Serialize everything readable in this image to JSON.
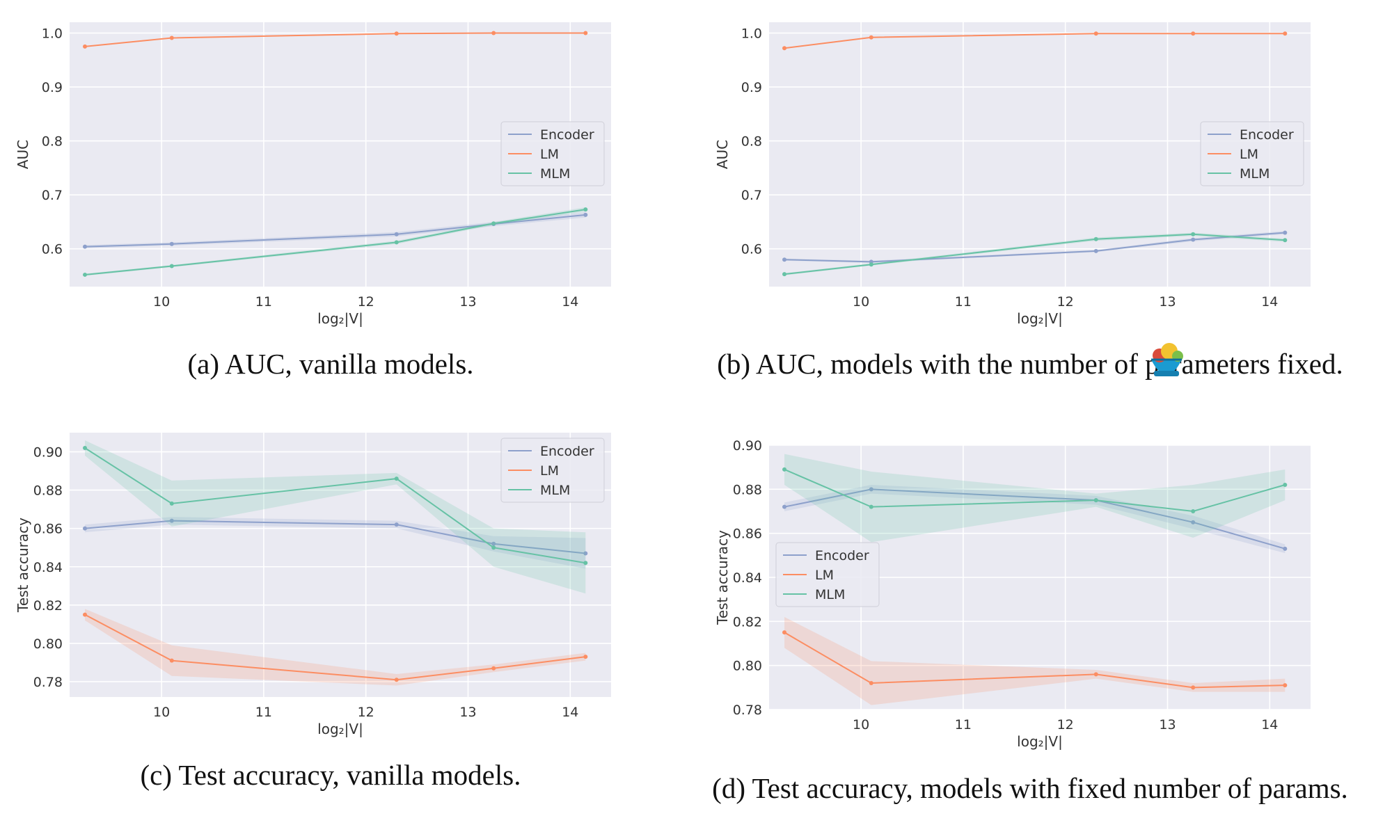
{
  "colors": {
    "Encoder": "#8da0cb",
    "LM": "#fc8d62",
    "MLM": "#66c2a5",
    "panel_background": "#eaeaf2",
    "grid": "#ffffff"
  },
  "logo_icon": "salad-bowl-icon",
  "chart_data": [
    {
      "type": "line",
      "caption": "(a) AUC, vanilla models.",
      "xlabel": "log₂|V|",
      "ylabel": "AUC",
      "xlim": [
        9.1,
        14.4
      ],
      "ylim": [
        0.53,
        1.02
      ],
      "xticks": [
        10,
        11,
        12,
        13,
        14
      ],
      "xtick_labels": [
        "10",
        "11",
        "12",
        "13",
        "14"
      ],
      "yticks": [
        0.6,
        0.7,
        0.8,
        0.9,
        1.0
      ],
      "ytick_labels": [
        "0.6",
        "0.7",
        "0.8",
        "0.9",
        "1.0"
      ],
      "grid": true,
      "legend": "center-right",
      "x": [
        9.25,
        10.1,
        12.3,
        13.25,
        14.15
      ],
      "series": [
        {
          "name": "Encoder",
          "values": [
            0.604,
            0.609,
            0.627,
            0.646,
            0.663
          ],
          "band": [
            0.003,
            0.003,
            0.004,
            0.004,
            0.005
          ]
        },
        {
          "name": "LM",
          "values": [
            0.975,
            0.991,
            0.999,
            1.0,
            1.0
          ],
          "band": [
            0.001,
            0.001,
            0.001,
            0.001,
            0.001
          ]
        },
        {
          "name": "MLM",
          "values": [
            0.552,
            0.568,
            0.612,
            0.647,
            0.673
          ],
          "band": [
            0.002,
            0.002,
            0.003,
            0.003,
            0.004
          ]
        }
      ]
    },
    {
      "type": "line",
      "caption": "(b) AUC, models with the number of parameters fixed.",
      "xlabel": "log₂|V|",
      "ylabel": "AUC",
      "xlim": [
        9.1,
        14.4
      ],
      "ylim": [
        0.53,
        1.02
      ],
      "xticks": [
        10,
        11,
        12,
        13,
        14
      ],
      "xtick_labels": [
        "10",
        "11",
        "12",
        "13",
        "14"
      ],
      "yticks": [
        0.6,
        0.7,
        0.8,
        0.9,
        1.0
      ],
      "ytick_labels": [
        "0.6",
        "0.7",
        "0.8",
        "0.9",
        "1.0"
      ],
      "grid": true,
      "legend": "center-right",
      "x": [
        9.25,
        10.1,
        12.3,
        13.25,
        14.15
      ],
      "series": [
        {
          "name": "Encoder",
          "values": [
            0.58,
            0.576,
            0.596,
            0.617,
            0.63
          ],
          "band": [
            0.002,
            0.002,
            0.002,
            0.003,
            0.003
          ]
        },
        {
          "name": "LM",
          "values": [
            0.972,
            0.992,
            0.999,
            0.999,
            0.999
          ],
          "band": [
            0.001,
            0.001,
            0.001,
            0.001,
            0.001
          ]
        },
        {
          "name": "MLM",
          "values": [
            0.553,
            0.571,
            0.618,
            0.627,
            0.616
          ],
          "band": [
            0.002,
            0.002,
            0.003,
            0.003,
            0.003
          ]
        }
      ]
    },
    {
      "type": "line",
      "caption": "(c) Test accuracy, vanilla models.",
      "xlabel": "log₂|V|",
      "ylabel": "Test accuracy",
      "xlim": [
        9.1,
        14.4
      ],
      "ylim": [
        0.772,
        0.91
      ],
      "xticks": [
        10,
        11,
        12,
        13,
        14
      ],
      "xtick_labels": [
        "10",
        "11",
        "12",
        "13",
        "14"
      ],
      "yticks": [
        0.78,
        0.8,
        0.82,
        0.84,
        0.86,
        0.88,
        0.9
      ],
      "ytick_labels": [
        "0.78",
        "0.80",
        "0.82",
        "0.84",
        "0.86",
        "0.88",
        "0.90"
      ],
      "grid": true,
      "legend": "top-right",
      "x": [
        9.25,
        10.1,
        12.3,
        13.25,
        14.15
      ],
      "series": [
        {
          "name": "Encoder",
          "values": [
            0.86,
            0.864,
            0.862,
            0.852,
            0.847
          ],
          "band": [
            0.002,
            0.002,
            0.002,
            0.004,
            0.008
          ]
        },
        {
          "name": "LM",
          "values": [
            0.815,
            0.791,
            0.781,
            0.787,
            0.793
          ],
          "band": [
            0.003,
            0.008,
            0.003,
            0.002,
            0.002
          ]
        },
        {
          "name": "MLM",
          "values": [
            0.902,
            0.873,
            0.886,
            0.85,
            0.842
          ],
          "band": [
            0.004,
            0.012,
            0.003,
            0.01,
            0.016
          ]
        }
      ]
    },
    {
      "type": "line",
      "caption": "(d) Test accuracy, models with fixed number of params.",
      "xlabel": "log₂|V|",
      "ylabel": "Test accuracy",
      "xlim": [
        9.1,
        14.4
      ],
      "ylim": [
        0.78,
        0.9
      ],
      "xticks": [
        10,
        11,
        12,
        13,
        14
      ],
      "xtick_labels": [
        "10",
        "11",
        "12",
        "13",
        "14"
      ],
      "yticks": [
        0.78,
        0.8,
        0.82,
        0.84,
        0.86,
        0.88,
        0.9
      ],
      "ytick_labels": [
        "0.78",
        "0.80",
        "0.82",
        "0.84",
        "0.86",
        "0.88",
        "0.90"
      ],
      "grid": true,
      "legend": "center-left",
      "x": [
        9.25,
        10.1,
        12.3,
        13.25,
        14.15
      ],
      "series": [
        {
          "name": "Encoder",
          "values": [
            0.872,
            0.88,
            0.875,
            0.865,
            0.853
          ],
          "band": [
            0.002,
            0.002,
            0.002,
            0.003,
            0.002
          ]
        },
        {
          "name": "LM",
          "values": [
            0.815,
            0.792,
            0.796,
            0.79,
            0.791
          ],
          "band": [
            0.007,
            0.01,
            0.002,
            0.002,
            0.003
          ]
        },
        {
          "name": "MLM",
          "values": [
            0.889,
            0.872,
            0.875,
            0.87,
            0.882
          ],
          "band": [
            0.007,
            0.016,
            0.003,
            0.012,
            0.007
          ]
        }
      ]
    }
  ]
}
